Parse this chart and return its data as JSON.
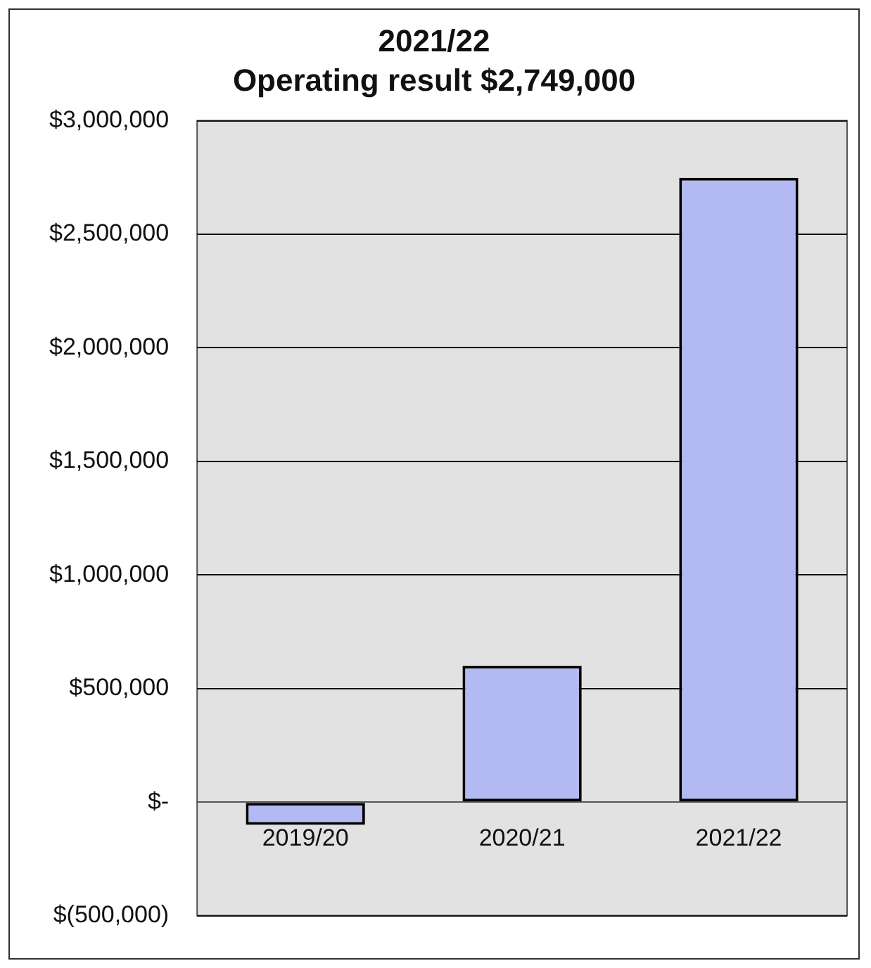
{
  "chart_data": {
    "type": "bar",
    "title": "2021/22",
    "subtitle": "Operating result $2,749,000",
    "categories": [
      "2019/20",
      "2020/21",
      "2021/22"
    ],
    "values": [
      -100000,
      600000,
      2749000
    ],
    "color": "#b3b9f2",
    "ylim": [
      -500000,
      3000000
    ],
    "yticks": [
      {
        "value": -500000,
        "label": "$(500,000)"
      },
      {
        "value": 0,
        "label": "$-"
      },
      {
        "value": 500000,
        "label": "$500,000"
      },
      {
        "value": 1000000,
        "label": "$1,000,000"
      },
      {
        "value": 1500000,
        "label": "$1,500,000"
      },
      {
        "value": 2000000,
        "label": "$2,000,000"
      },
      {
        "value": 2500000,
        "label": "$2,500,000"
      },
      {
        "value": 3000000,
        "label": "$3,000,000"
      }
    ],
    "grid": "y",
    "legend": false
  }
}
